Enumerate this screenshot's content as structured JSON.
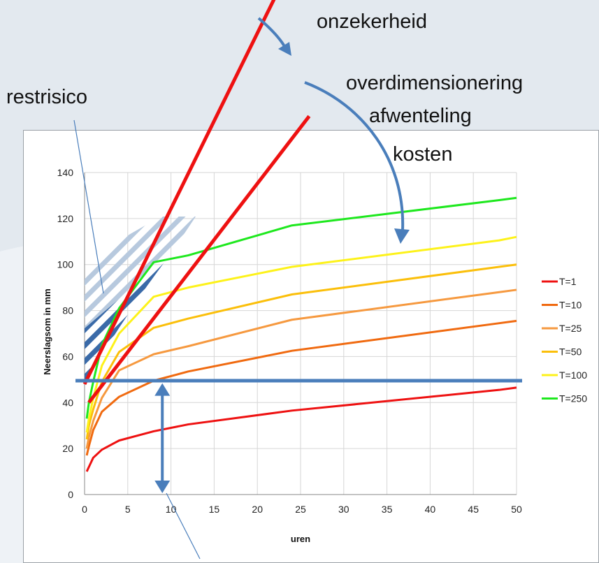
{
  "annotations": {
    "onzekerheid": "onzekerheid",
    "overdimensionering": "overdimensionering",
    "afwenteling": "afwenteling",
    "kosten": "kosten",
    "restrisico": "restrisico"
  },
  "colors": {
    "T=1": "#ee1111",
    "T=10": "#f06a10",
    "T=25": "#f6993f",
    "T=50": "#fbbf0a",
    "T=100": "#fdf21a",
    "T=250": "#1ee81e",
    "annotation_red": "#ee1111",
    "annotation_blue": "#4a7ebb",
    "hatch_dark": "#3a6aa8",
    "hatch_light": "#b7c9de",
    "background": "#e3e9ef"
  },
  "chart_data": {
    "type": "line",
    "title": "",
    "xlabel": "uren",
    "ylabel": "Neerslagsom in mm",
    "xlim": [
      0,
      50
    ],
    "ylim": [
      0,
      140
    ],
    "x_ticks": [
      "0",
      "5",
      "10",
      "15",
      "20",
      "25",
      "30",
      "35",
      "40",
      "45",
      "50"
    ],
    "y_ticks": [
      "0",
      "20",
      "40",
      "60",
      "80",
      "100",
      "120",
      "140"
    ],
    "grid": true,
    "legend_position": "right",
    "x": [
      0.25,
      0.5,
      1,
      2,
      4,
      8,
      12,
      24,
      48,
      50
    ],
    "series": [
      {
        "name": "T=1",
        "values": [
          10,
          12,
          16,
          19.5,
          23.5,
          27.5,
          30.5,
          36.5,
          45.5,
          46.5
        ]
      },
      {
        "name": "T=10",
        "values": [
          17,
          21,
          28,
          36,
          42.5,
          49.5,
          53.5,
          62.5,
          74.5,
          75.5
        ]
      },
      {
        "name": "T=25",
        "values": [
          20,
          25,
          32,
          42,
          54,
          61,
          64.5,
          76,
          88,
          89
        ]
      },
      {
        "name": "T=50",
        "values": [
          24,
          30,
          37,
          49,
          62,
          72.5,
          76.5,
          87,
          99,
          100
        ]
      },
      {
        "name": "T=100",
        "values": [
          27,
          33,
          42,
          56,
          70,
          86,
          90,
          99,
          110.5,
          112
        ]
      },
      {
        "name": "T=250",
        "values": [
          33,
          40,
          49,
          65,
          81,
          101,
          104,
          117,
          128,
          129
        ]
      }
    ],
    "annotation_lines": {
      "red_steep": {
        "from": [
          0,
          48
        ],
        "to": [
          23.2,
          225
        ]
      },
      "red_shallow": {
        "from": [
          0.5,
          40
        ],
        "to": [
          26,
          164.5
        ]
      },
      "blue_horizontal_y": 49.5,
      "blue_double_arrow_x": 9,
      "blue_double_arrow_y": [
        49,
        0
      ]
    }
  }
}
